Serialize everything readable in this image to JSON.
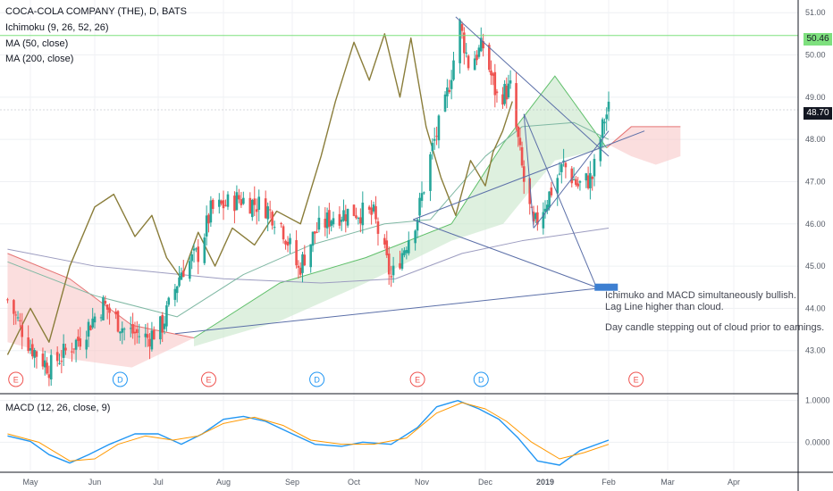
{
  "legend": {
    "title": "COCA-COLA COMPANY (THE), D, BATS",
    "ichimoku": "Ichimoku (9, 26, 52, 26)",
    "ma50": "MA (50, close)",
    "ma200": "MA (200, close)"
  },
  "macd_legend": "MACD (12, 26, close, 9)",
  "annotation": {
    "lines": [
      "Ichimuko and MACD simultaneously bullish.",
      "Lag Line higher than cloud.",
      "",
      "Day candle stepping out of cloud prior to earnings."
    ]
  },
  "price_labels": {
    "level": "50.46",
    "last": "48.70"
  },
  "colors": {
    "up": "#26a69a",
    "down": "#ef5350",
    "cloud_bull": "#c8e6c9",
    "cloud_bear": "#f8c8c8",
    "lag_line": "#8a7d3a",
    "ma50": "#7fb8a3",
    "ma200": "#9c9cc0",
    "macd": "#2196f3",
    "signal": "#ff9800",
    "drawing": "#5b6fa8",
    "level_line": "#7ee07e"
  },
  "events": [
    {
      "label": "E",
      "x": "2018-04-24"
    },
    {
      "label": "D",
      "x": "2018-06-13"
    },
    {
      "label": "E",
      "x": "2018-07-25"
    },
    {
      "label": "D",
      "x": "2018-09-13"
    },
    {
      "label": "E",
      "x": "2018-10-30"
    },
    {
      "label": "D",
      "x": "2018-11-29"
    },
    {
      "label": "E",
      "x": "2019-02-14"
    }
  ],
  "chart_data": [
    {
      "type": "candlestick",
      "title": "COCA-COLA COMPANY (THE), D, BATS",
      "x_ticks": [
        "May",
        "Jun",
        "Jul",
        "Aug",
        "Sep",
        "Oct",
        "Nov",
        "Dec",
        "2019",
        "Feb",
        "Mar",
        "Apr"
      ],
      "y_ticks": [
        43.0,
        44.0,
        45.0,
        46.0,
        47.0,
        48.0,
        49.0,
        50.0,
        51.0
      ],
      "ylim": [
        42.0,
        51.3
      ],
      "last_price": 48.7,
      "level": 50.46,
      "price_path": [
        [
          "2018-04-20",
          44.2
        ],
        [
          "2018-05-01",
          43.1
        ],
        [
          "2018-05-10",
          42.6
        ],
        [
          "2018-05-25",
          43.3
        ],
        [
          "2018-06-05",
          44.1
        ],
        [
          "2018-06-15",
          43.5
        ],
        [
          "2018-06-26",
          43.3
        ],
        [
          "2018-07-03",
          43.6
        ],
        [
          "2018-07-12",
          44.9
        ],
        [
          "2018-07-20",
          45.3
        ],
        [
          "2018-07-26",
          46.3
        ],
        [
          "2018-08-08",
          46.6
        ],
        [
          "2018-08-20",
          46.4
        ],
        [
          "2018-08-27",
          46.0
        ],
        [
          "2018-09-04",
          44.9
        ],
        [
          "2018-09-12",
          45.8
        ],
        [
          "2018-09-21",
          46.2
        ],
        [
          "2018-10-01",
          46.3
        ],
        [
          "2018-10-10",
          46.2
        ],
        [
          "2018-10-18",
          44.7
        ],
        [
          "2018-10-30",
          46.2
        ],
        [
          "2018-11-06",
          47.8
        ],
        [
          "2018-11-12",
          48.8
        ],
        [
          "2018-11-19",
          50.7
        ],
        [
          "2018-11-23",
          49.8
        ],
        [
          "2018-11-30",
          50.2
        ],
        [
          "2018-12-07",
          49.0
        ],
        [
          "2018-12-14",
          49.2
        ],
        [
          "2018-12-21",
          47.0
        ],
        [
          "2018-12-26",
          45.9
        ],
        [
          "2019-01-03",
          46.7
        ],
        [
          "2019-01-10",
          47.4
        ],
        [
          "2019-01-17",
          46.9
        ],
        [
          "2019-01-24",
          47.1
        ],
        [
          "2019-01-30",
          48.5
        ],
        [
          "2019-02-01",
          48.7
        ]
      ],
      "ma50": [
        [
          "2018-04-20",
          45.1
        ],
        [
          "2018-06-01",
          44.3
        ],
        [
          "2018-07-10",
          43.8
        ],
        [
          "2018-08-10",
          44.8
        ],
        [
          "2018-09-10",
          45.5
        ],
        [
          "2018-10-15",
          46.0
        ],
        [
          "2018-11-05",
          46.1
        ],
        [
          "2018-12-01",
          47.6
        ],
        [
          "2018-12-20",
          48.3
        ],
        [
          "2019-01-15",
          48.4
        ],
        [
          "2019-02-01",
          48.0
        ]
      ],
      "ma200": [
        [
          "2018-04-20",
          45.4
        ],
        [
          "2018-06-01",
          45.0
        ],
        [
          "2018-08-01",
          44.7
        ],
        [
          "2018-09-15",
          44.6
        ],
        [
          "2018-10-20",
          44.7
        ],
        [
          "2018-11-20",
          45.3
        ],
        [
          "2018-12-20",
          45.6
        ],
        [
          "2019-02-01",
          45.9
        ]
      ],
      "lag_line": [
        [
          "2018-04-20",
          42.9
        ],
        [
          "2018-05-01",
          44.0
        ],
        [
          "2018-05-10",
          43.2
        ],
        [
          "2018-05-20",
          45.0
        ],
        [
          "2018-06-01",
          46.4
        ],
        [
          "2018-06-10",
          46.7
        ],
        [
          "2018-06-20",
          45.7
        ],
        [
          "2018-06-28",
          46.2
        ],
        [
          "2018-07-05",
          45.2
        ],
        [
          "2018-07-12",
          44.7
        ],
        [
          "2018-07-20",
          45.8
        ],
        [
          "2018-07-28",
          45.0
        ],
        [
          "2018-08-05",
          45.9
        ],
        [
          "2018-08-15",
          45.5
        ],
        [
          "2018-08-25",
          46.3
        ],
        [
          "2018-09-05",
          46.0
        ],
        [
          "2018-09-15",
          47.6
        ],
        [
          "2018-09-22",
          48.9
        ],
        [
          "2018-10-01",
          50.3
        ],
        [
          "2018-10-08",
          49.4
        ],
        [
          "2018-10-15",
          50.5
        ],
        [
          "2018-10-22",
          49.0
        ],
        [
          "2018-10-27",
          50.4
        ],
        [
          "2018-11-03",
          48.3
        ],
        [
          "2018-11-10",
          47.1
        ],
        [
          "2018-11-17",
          46.2
        ],
        [
          "2018-11-24",
          47.5
        ],
        [
          "2018-12-01",
          46.9
        ],
        [
          "2018-12-05",
          47.7
        ],
        [
          "2018-12-10",
          48.2
        ],
        [
          "2018-12-15",
          48.9
        ]
      ],
      "cloud": {
        "bear": [
          {
            "start": "2018-04-20",
            "end": "2018-07-18",
            "top": [
              45.3,
              44.7,
              43.6,
              43.3
            ],
            "bottom": [
              43.2,
              42.8,
              42.6,
              43.3
            ]
          },
          {
            "start": "2019-01-31",
            "end": "2019-03-07",
            "top": [
              47.8,
              48.3,
              48.3,
              48.3
            ],
            "bottom": [
              47.9,
              47.6,
              47.4,
              47.6
            ]
          }
        ],
        "bull": [
          {
            "start": "2018-07-18",
            "end": "2018-11-15",
            "top": [
              43.3,
              44.6,
              45.2,
              46.0
            ],
            "bottom": [
              43.1,
              43.7,
              44.6,
              45.6
            ]
          },
          {
            "start": "2018-11-15",
            "end": "2019-01-31",
            "top": [
              46.0,
              47.9,
              49.5,
              47.8
            ],
            "bottom": [
              45.6,
              46.0,
              47.5,
              47.8
            ]
          }
        ]
      },
      "drawings": [
        {
          "from": [
            "2018-07-09",
            43.4
          ],
          "to": [
            "2019-02-01",
            44.5
          ]
        },
        {
          "from": [
            "2018-11-17",
            50.9
          ],
          "to": [
            "2019-02-01",
            47.6
          ]
        },
        {
          "from": [
            "2018-10-28",
            46.1
          ],
          "to": [
            "2019-01-26",
            44.5
          ]
        },
        {
          "from": [
            "2018-12-21",
            48.6
          ],
          "to": [
            "2019-01-26",
            44.5
          ]
        },
        {
          "from": [
            "2018-10-28",
            46.1
          ],
          "to": [
            "2019-02-18",
            48.2
          ]
        },
        {
          "from": [
            "2018-12-21",
            48.6
          ],
          "to": [
            "2018-12-26",
            45.9
          ]
        },
        {
          "from": [
            "2018-12-26",
            45.9
          ],
          "to": [
            "2019-02-01",
            48.2
          ]
        }
      ]
    },
    {
      "type": "line",
      "title": "MACD (12, 26, close, 9)",
      "y_ticks": [
        1.0,
        0.0
      ],
      "ylim": [
        -0.7,
        1.1
      ],
      "series": [
        {
          "name": "MACD",
          "values": [
            [
              "2018-04-20",
              0.15
            ],
            [
              "2018-05-01",
              0.02
            ],
            [
              "2018-05-10",
              -0.3
            ],
            [
              "2018-05-20",
              -0.5
            ],
            [
              "2018-05-29",
              -0.3
            ],
            [
              "2018-06-08",
              -0.05
            ],
            [
              "2018-06-20",
              0.2
            ],
            [
              "2018-07-01",
              0.2
            ],
            [
              "2018-07-12",
              -0.05
            ],
            [
              "2018-07-22",
              0.2
            ],
            [
              "2018-08-01",
              0.55
            ],
            [
              "2018-08-10",
              0.62
            ],
            [
              "2018-08-20",
              0.5
            ],
            [
              "2018-09-01",
              0.2
            ],
            [
              "2018-09-12",
              -0.05
            ],
            [
              "2018-09-25",
              -0.1
            ],
            [
              "2018-10-05",
              0.0
            ],
            [
              "2018-10-18",
              -0.05
            ],
            [
              "2018-10-30",
              0.35
            ],
            [
              "2018-11-08",
              0.85
            ],
            [
              "2018-11-18",
              1.0
            ],
            [
              "2018-11-28",
              0.8
            ],
            [
              "2018-12-08",
              0.55
            ],
            [
              "2018-12-18",
              0.1
            ],
            [
              "2018-12-28",
              -0.45
            ],
            [
              "2019-01-08",
              -0.55
            ],
            [
              "2019-01-18",
              -0.2
            ],
            [
              "2019-02-01",
              0.05
            ]
          ]
        },
        {
          "name": "Signal",
          "values": [
            [
              "2018-04-20",
              0.2
            ],
            [
              "2018-05-05",
              0.0
            ],
            [
              "2018-05-20",
              -0.45
            ],
            [
              "2018-06-01",
              -0.4
            ],
            [
              "2018-06-12",
              -0.05
            ],
            [
              "2018-06-25",
              0.15
            ],
            [
              "2018-07-08",
              0.05
            ],
            [
              "2018-07-20",
              0.15
            ],
            [
              "2018-08-01",
              0.45
            ],
            [
              "2018-08-15",
              0.6
            ],
            [
              "2018-08-28",
              0.4
            ],
            [
              "2018-09-10",
              0.05
            ],
            [
              "2018-09-25",
              -0.05
            ],
            [
              "2018-10-10",
              -0.05
            ],
            [
              "2018-10-25",
              0.1
            ],
            [
              "2018-11-08",
              0.7
            ],
            [
              "2018-11-20",
              0.95
            ],
            [
              "2018-12-01",
              0.8
            ],
            [
              "2018-12-12",
              0.5
            ],
            [
              "2018-12-25",
              0.0
            ],
            [
              "2019-01-08",
              -0.4
            ],
            [
              "2019-01-20",
              -0.25
            ],
            [
              "2019-02-01",
              -0.05
            ]
          ]
        }
      ]
    }
  ]
}
